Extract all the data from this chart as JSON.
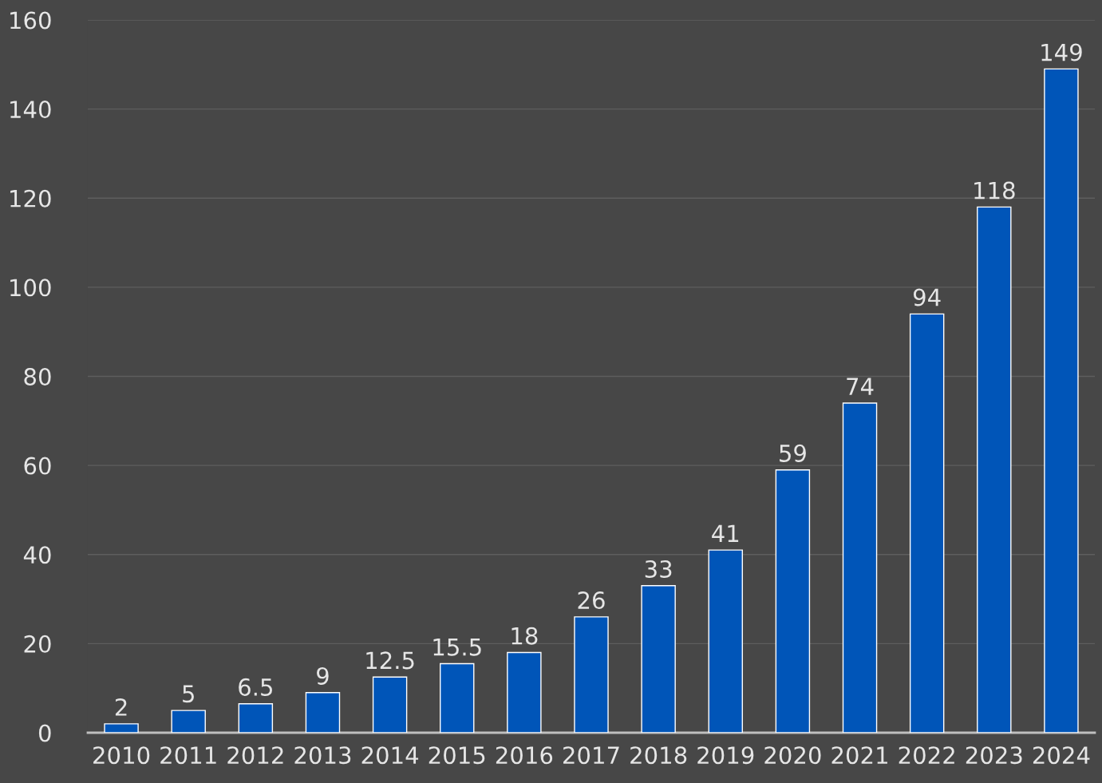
{
  "chart_data": {
    "type": "bar",
    "categories": [
      "2010",
      "2011",
      "2012",
      "2013",
      "2014",
      "2015",
      "2016",
      "2017",
      "2018",
      "2019",
      "2020",
      "2021",
      "2022",
      "2023",
      "2024"
    ],
    "values": [
      2,
      5,
      6.5,
      9,
      12.5,
      15.5,
      18,
      26,
      33,
      41,
      59,
      74,
      94,
      118,
      149
    ],
    "color": "#0055b8",
    "ylim": [
      0,
      160
    ],
    "yticks": [
      0,
      20,
      40,
      60,
      80,
      100,
      120,
      140,
      160
    ],
    "grid": "y",
    "data_labels": true
  }
}
